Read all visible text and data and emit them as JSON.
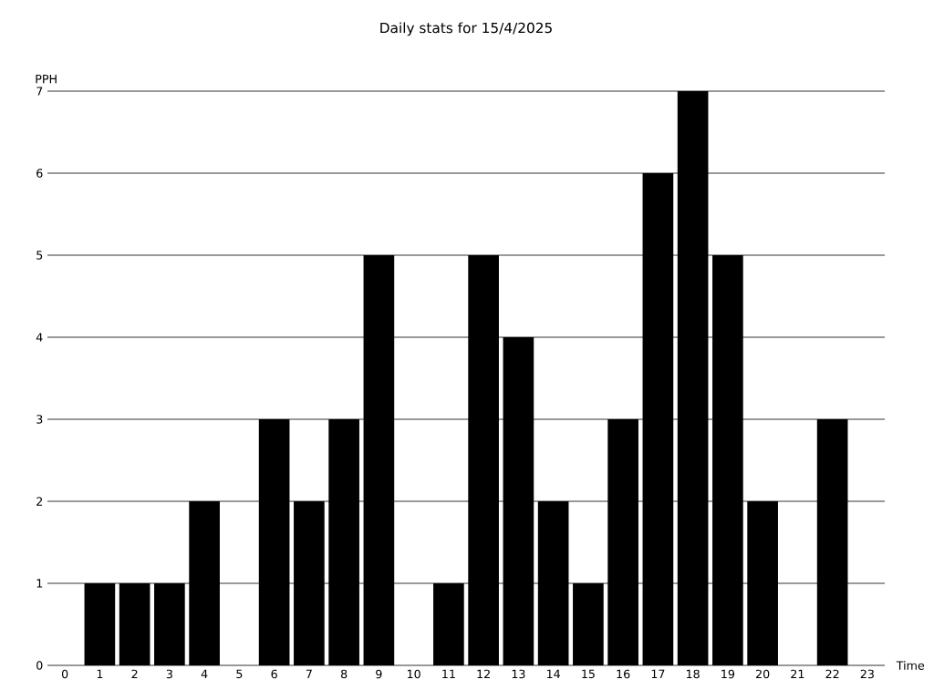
{
  "chart_data": {
    "type": "bar",
    "title": "Daily stats for 15/4/2025",
    "xlabel": "Time",
    "ylabel": "PPH",
    "categories": [
      "0",
      "1",
      "2",
      "3",
      "4",
      "5",
      "6",
      "7",
      "8",
      "9",
      "10",
      "11",
      "12",
      "13",
      "14",
      "15",
      "16",
      "17",
      "18",
      "19",
      "20",
      "21",
      "22",
      "23"
    ],
    "values": [
      0,
      1,
      1,
      1,
      2,
      0,
      3,
      2,
      3,
      5,
      0,
      1,
      5,
      4,
      2,
      1,
      3,
      6,
      7,
      5,
      2,
      0,
      3,
      0
    ],
    "color": "#000000",
    "ylim": [
      0,
      7
    ],
    "yticks": [
      0,
      1,
      2,
      3,
      4,
      5,
      6,
      7
    ],
    "grid": "y"
  }
}
